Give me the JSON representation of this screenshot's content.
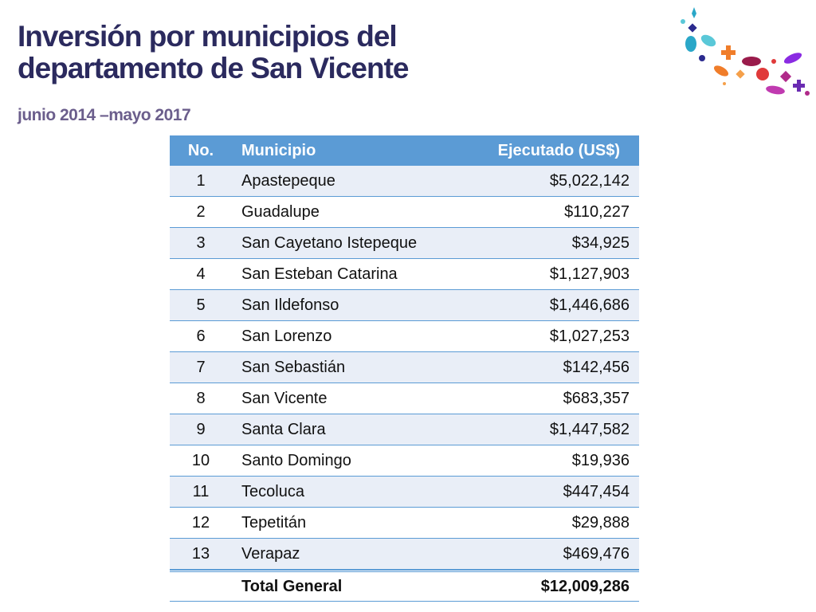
{
  "header": {
    "title_lines": [
      "Inversión por municipios del",
      "departamento de San Vicente"
    ],
    "subtitle": "junio 2014 –mayo 2017"
  },
  "table": {
    "columns": [
      "No.",
      "Municipio",
      "Ejecutado (US$)"
    ],
    "rows": [
      [
        "1",
        "Apastepeque",
        "$5,022,142"
      ],
      [
        "2",
        "Guadalupe",
        "$110,227"
      ],
      [
        "3",
        "San Cayetano Istepeque",
        "$34,925"
      ],
      [
        "4",
        "San Esteban Catarina",
        "$1,127,903"
      ],
      [
        "5",
        "San Ildefonso",
        "$1,446,686"
      ],
      [
        "6",
        "San Lorenzo",
        "$1,027,253"
      ],
      [
        "7",
        "San Sebastián",
        "$142,456"
      ],
      [
        "8",
        "San Vicente",
        "$683,357"
      ],
      [
        "9",
        "Santa Clara",
        "$1,447,582"
      ],
      [
        "10",
        "Santo Domingo",
        "$19,936"
      ],
      [
        "11",
        "Tecoluca",
        "$447,454"
      ],
      [
        "12",
        "Tepetitán",
        "$29,888"
      ],
      [
        "13",
        "Verapaz",
        "$469,476"
      ]
    ],
    "total": {
      "label": "Total General",
      "value": "$12,009,286"
    }
  }
}
